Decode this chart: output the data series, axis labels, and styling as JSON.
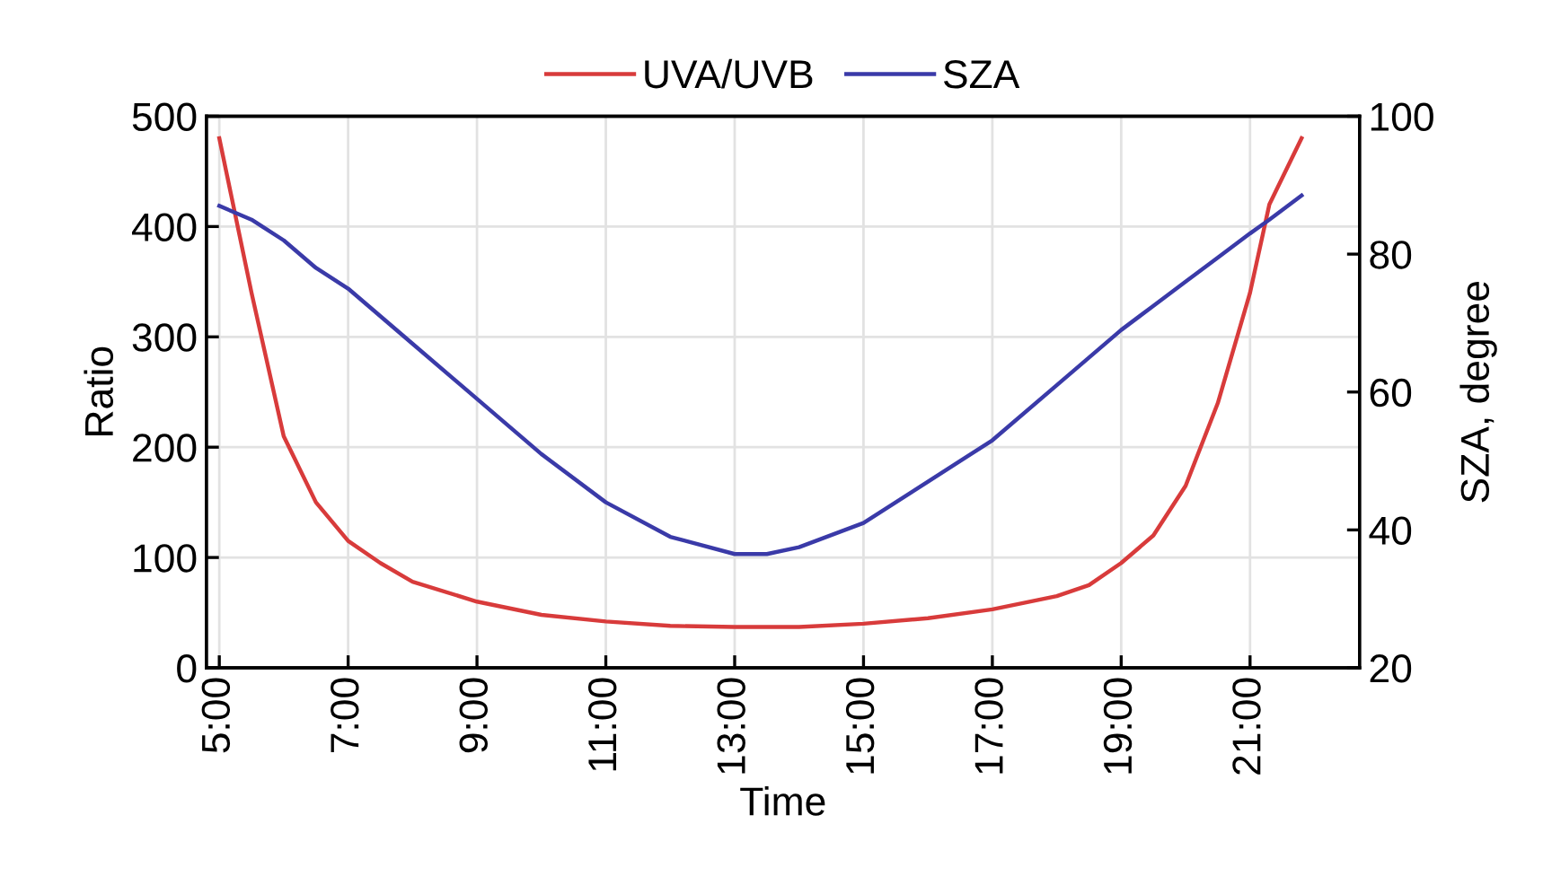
{
  "chart_data": {
    "type": "line",
    "xlabel": "Time",
    "ylabel": "Ratio",
    "y2label": "SZA, degree",
    "x": [
      5,
      5.5,
      6,
      6.5,
      7,
      7.5,
      8,
      9,
      10,
      11,
      12,
      13,
      13.5,
      14,
      15,
      16,
      17,
      18,
      18.5,
      19,
      19.5,
      20,
      20.5,
      21,
      21.3,
      21.8
    ],
    "series": [
      {
        "name": "UVA/UVB",
        "color": "#d83b3b",
        "values": [
          480,
          340,
          210,
          150,
          115,
          95,
          78,
          60,
          48,
          42,
          38,
          37,
          37,
          37,
          40,
          45,
          53,
          65,
          75,
          95,
          120,
          165,
          240,
          340,
          420,
          480
        ]
      },
      {
        "name": "SZA",
        "color": "#3a3aa8",
        "axis": "y2",
        "values": [
          87,
          85,
          82,
          78,
          75,
          71,
          67,
          59,
          51,
          44,
          39,
          36.5,
          36.5,
          37.5,
          41,
          47,
          53,
          61,
          65,
          69,
          72.5,
          76,
          79.5,
          83,
          85,
          88.5
        ]
      }
    ],
    "xlim": [
      4.8,
      22.7
    ],
    "xticks": [
      {
        "value": 5,
        "label": "5:00"
      },
      {
        "value": 7,
        "label": "7:00"
      },
      {
        "value": 9,
        "label": "9:00"
      },
      {
        "value": 11,
        "label": "11:00"
      },
      {
        "value": 13,
        "label": "13:00"
      },
      {
        "value": 15,
        "label": "15:00"
      },
      {
        "value": 17,
        "label": "17:00"
      },
      {
        "value": 19,
        "label": "19:00"
      },
      {
        "value": 21,
        "label": "21:00"
      }
    ],
    "ylim": [
      0,
      500
    ],
    "yticks": [
      0,
      100,
      200,
      300,
      400,
      500
    ],
    "y2lim": [
      20,
      100
    ],
    "y2ticks": [
      20,
      40,
      60,
      80,
      100
    ],
    "grid": true,
    "legend": "top",
    "marker": "none",
    "line_style": "solid"
  }
}
